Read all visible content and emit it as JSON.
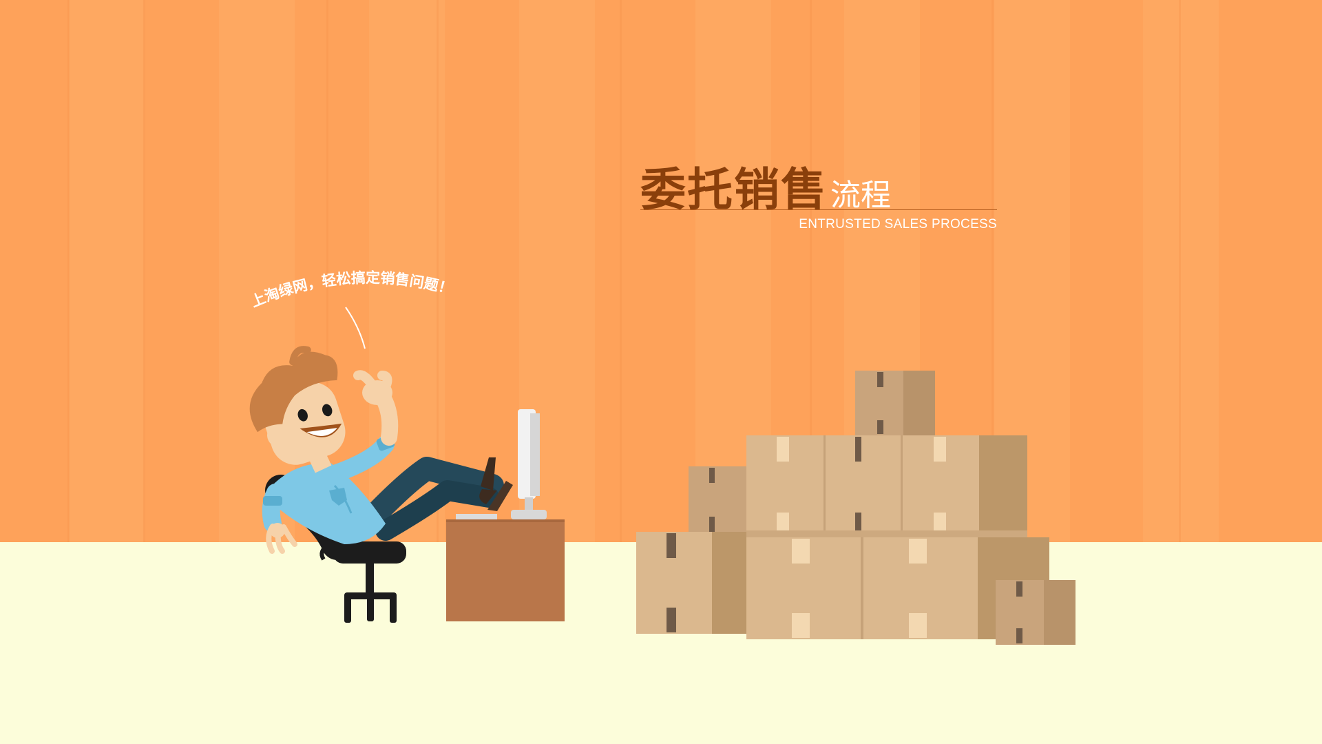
{
  "title": {
    "main": "委托销售",
    "sub": "流程",
    "english": "ENTRUSTED SALES PROCESS"
  },
  "slogan": "上淘绿网，轻松搞定销售问题！",
  "colors": {
    "wall": "#fea25a",
    "wall_stripe": "#fda75f",
    "floor": "#fcfdda",
    "title_main": "#8a3f0b",
    "title_sub": "#ffffff",
    "desk": "#b9764a",
    "box_front": "#dbb88e",
    "box_side": "#bc9769",
    "shirt": "#7ec8e6",
    "pants": "#25495a",
    "hair": "#c87f45"
  },
  "icons": {
    "figure": "man-relaxing-icon",
    "chair": "office-chair-icon",
    "monitor": "monitor-icon",
    "desk": "desk-icon",
    "boxes": "cardboard-boxes-icon"
  }
}
